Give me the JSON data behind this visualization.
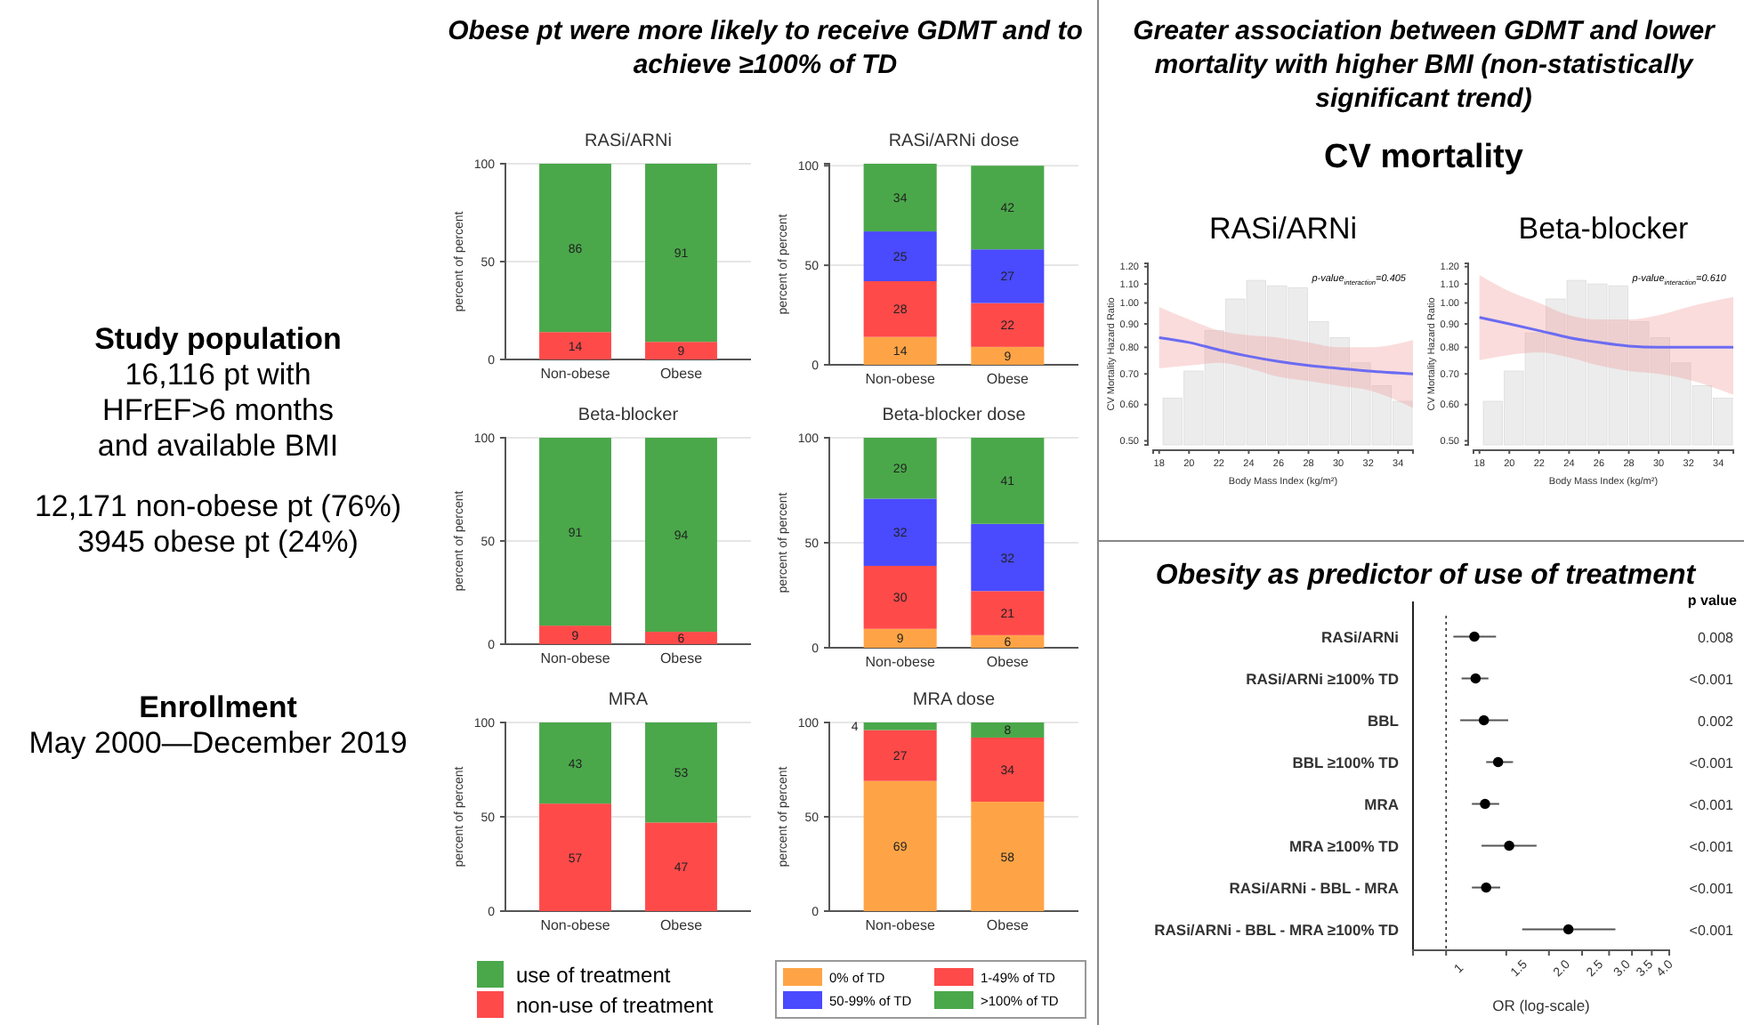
{
  "chart_data": [
    {
      "type": "other",
      "title": "Study population",
      "annotations": [
        "16,116 pt with",
        "HFrEF>6 months",
        "and available BMI",
        "12,171 non-obese pt (76%)",
        "3945 obese pt (24%)"
      ]
    },
    {
      "type": "other",
      "title": "Enrollment",
      "annotations": [
        "May 2000—December 2019"
      ]
    },
    {
      "type": "other",
      "title": "Obese pt were more likely to receive GDMT and to achieve ≥100% of TD"
    },
    {
      "type": "bar",
      "title": "RASi/ARNi",
      "categories": [
        "Non-obese",
        "Obese"
      ],
      "ylabel": "percent of percent",
      "ylim": [
        0,
        100
      ],
      "yticks": [
        0,
        50,
        100
      ],
      "grid": "y",
      "stacked": true,
      "data_labels": true,
      "series": [
        {
          "color": "#ff4a4a",
          "values": [
            14,
            9
          ]
        },
        {
          "color": "#4aa84a",
          "values": [
            86,
            91
          ]
        }
      ]
    },
    {
      "type": "bar",
      "title": "RASi/ARNi dose",
      "categories": [
        "Non-obese",
        "Obese"
      ],
      "ylabel": "percent of percent",
      "ylim": [
        0,
        101
      ],
      "yticks": [
        0,
        50,
        100
      ],
      "grid": "y",
      "stacked": true,
      "data_labels": true,
      "series": [
        {
          "color": "#ffa446",
          "values": [
            14,
            9
          ]
        },
        {
          "color": "#ff4a4a",
          "values": [
            28,
            22
          ]
        },
        {
          "color": "#4a4aff",
          "values": [
            25,
            27
          ]
        },
        {
          "color": "#4aa84a",
          "values": [
            34,
            42
          ]
        }
      ]
    },
    {
      "type": "bar",
      "title": "Beta-blocker",
      "categories": [
        "Non-obese",
        "Obese"
      ],
      "ylabel": "percent of percent",
      "ylim": [
        0,
        100
      ],
      "yticks": [
        0,
        50,
        100
      ],
      "grid": "y",
      "stacked": true,
      "data_labels": true,
      "series": [
        {
          "color": "#ff4a4a",
          "values": [
            9,
            6
          ]
        },
        {
          "color": "#4aa84a",
          "values": [
            91,
            94
          ]
        }
      ]
    },
    {
      "type": "bar",
      "title": "Beta-blocker dose",
      "categories": [
        "Non-obese",
        "Obese"
      ],
      "ylabel": "percent of percent",
      "ylim": [
        0,
        100
      ],
      "yticks": [
        0,
        50,
        100
      ],
      "grid": "y",
      "stacked": true,
      "data_labels": true,
      "series": [
        {
          "color": "#ffa446",
          "values": [
            9,
            6
          ]
        },
        {
          "color": "#ff4a4a",
          "values": [
            30,
            21
          ]
        },
        {
          "color": "#4a4aff",
          "values": [
            32,
            32
          ]
        },
        {
          "color": "#4aa84a",
          "values": [
            29,
            41
          ]
        }
      ]
    },
    {
      "type": "bar",
      "title": "MRA",
      "categories": [
        "Non-obese",
        "Obese"
      ],
      "ylabel": "percent of percent",
      "ylim": [
        0,
        100
      ],
      "yticks": [
        0,
        50,
        100
      ],
      "grid": "y",
      "stacked": true,
      "data_labels": true,
      "legend": "bottom",
      "series": [
        {
          "name": "non-use of treatment",
          "color": "#ff4a4a",
          "values": [
            57,
            47
          ]
        },
        {
          "name": "use of treatment",
          "color": "#4aa84a",
          "values": [
            43,
            53
          ]
        }
      ]
    },
    {
      "type": "bar",
      "title": "MRA dose",
      "categories": [
        "Non-obese",
        "Obese"
      ],
      "ylabel": "percent of percent",
      "ylim": [
        0,
        100
      ],
      "yticks": [
        0,
        50,
        100
      ],
      "grid": "y",
      "stacked": true,
      "data_labels": true,
      "legend": "bottom",
      "series": [
        {
          "name": "0% of TD",
          "color": "#ffa446",
          "values": [
            69,
            58
          ]
        },
        {
          "name": "1-49% of TD",
          "color": "#ff4a4a",
          "values": [
            27,
            34
          ]
        },
        {
          "name": "50-99% of TD",
          "color": "#4a4aff",
          "values": [
            0,
            0
          ],
          "value_labels": [
            null,
            null
          ]
        },
        {
          "name": ">100% of TD",
          "color": "#4aa84a",
          "values": [
            4,
            8
          ]
        }
      ]
    },
    {
      "type": "other",
      "title": "Greater association between GDMT and lower mortality with higher BMI (non-statistically significant trend)",
      "subtitle": "CV mortality"
    },
    {
      "type": "line",
      "title": "RASi/ARNi",
      "xlabel": "Body Mass Index (kg/m²)",
      "ylabel": "CV Mortality Hazard Ratio",
      "log": "y",
      "xlim": [
        17.6,
        35
      ],
      "xticks": [
        18,
        20,
        22,
        24,
        26,
        28,
        30,
        32,
        34
      ],
      "ylim": [
        0.49,
        1.22
      ],
      "yticks": [
        {
          "value": 0.5,
          "label": "0.50"
        },
        {
          "value": 0.6,
          "label": "0.60"
        },
        {
          "value": 0.7,
          "label": "0.70"
        },
        {
          "value": 0.8,
          "label": "0.80"
        },
        {
          "value": 0.9,
          "label": "0.90"
        },
        {
          "value": 1,
          "label": "1.00"
        },
        {
          "value": 1.1,
          "label": "1.10"
        },
        {
          "value": 1.2,
          "label": "1.20"
        }
      ],
      "annotations": [
        "p-value$_{interaction}$=0.405"
      ],
      "series": [
        {
          "type": "histogram",
          "color": "#ececec",
          "bins": [
            18.2,
            19.6,
            21,
            22.4,
            23.8,
            25.2,
            26.6,
            28,
            29.4,
            30.8,
            32.2,
            33.6,
            35
          ],
          "values": [
            0.62,
            0.71,
            0.87,
            1.02,
            1.12,
            1.09,
            1.08,
            0.91,
            0.84,
            0.74,
            0.66,
            0.61
          ]
        },
        {
          "type": "line",
          "color": "#6b6bf2",
          "x": [
            18,
            20,
            22,
            24,
            26,
            28,
            30,
            32,
            35
          ],
          "values": [
            0.84,
            0.82,
            0.79,
            0.765,
            0.745,
            0.73,
            0.72,
            0.71,
            0.7
          ],
          "lower": [
            0.72,
            0.73,
            0.74,
            0.72,
            0.69,
            0.675,
            0.66,
            0.645,
            0.59
          ],
          "upper": [
            0.98,
            0.92,
            0.87,
            0.85,
            0.84,
            0.82,
            0.8,
            0.8,
            0.83
          ]
        }
      ]
    },
    {
      "type": "line",
      "title": "Beta-blocker",
      "xlabel": "Body Mass Index (kg/m²)",
      "ylabel": "CV Mortality Hazard Ratio",
      "log": "y",
      "xlim": [
        17.6,
        35
      ],
      "xticks": [
        18,
        20,
        22,
        24,
        26,
        28,
        30,
        32,
        34
      ],
      "ylim": [
        0.49,
        1.22
      ],
      "yticks": [
        {
          "value": 0.5,
          "label": "0.50"
        },
        {
          "value": 0.6,
          "label": "0.60"
        },
        {
          "value": 0.7,
          "label": "0.70"
        },
        {
          "value": 0.8,
          "label": "0.80"
        },
        {
          "value": 0.9,
          "label": "0.90"
        },
        {
          "value": 1,
          "label": "1.00"
        },
        {
          "value": 1.1,
          "label": "1.10"
        },
        {
          "value": 1.2,
          "label": "1.20"
        }
      ],
      "annotations": [
        "p-value$_{interaction}$=0.610"
      ],
      "series": [
        {
          "type": "histogram",
          "color": "#ececec",
          "bins": [
            18.2,
            19.6,
            21,
            22.4,
            23.8,
            25.2,
            26.6,
            28,
            29.4,
            30.8,
            32.2,
            33.6,
            35
          ],
          "values": [
            0.61,
            0.71,
            0.86,
            1.02,
            1.12,
            1.1,
            1.09,
            0.91,
            0.84,
            0.74,
            0.66,
            0.62
          ]
        },
        {
          "type": "line",
          "color": "#6b6bf2",
          "x": [
            18,
            20,
            22,
            24,
            26,
            28,
            30,
            32,
            35
          ],
          "values": [
            0.93,
            0.9,
            0.87,
            0.84,
            0.82,
            0.805,
            0.8,
            0.8,
            0.8
          ],
          "lower": [
            0.75,
            0.77,
            0.78,
            0.76,
            0.73,
            0.71,
            0.7,
            0.68,
            0.63
          ],
          "upper": [
            1.15,
            1.06,
            1.0,
            0.94,
            0.92,
            0.92,
            0.94,
            0.98,
            1.03
          ]
        }
      ]
    },
    {
      "type": "scatter",
      "orientation": "horizontal",
      "title": "Obesity as predictor of use of treatment",
      "categories": [
        "RASi/ARNi",
        "RASi/ARNi ≥100% TD",
        "BBL",
        "BBL ≥100% TD",
        "MRA",
        "MRA ≥100% TD",
        "RASi/ARNi - BBL - MRA",
        "RASi/ARNi - BBL - MRA ≥100% TD"
      ],
      "y2_categories": [
        "0.008",
        "<0.001",
        "0.002",
        "<0.001",
        "<0.001",
        "<0.001",
        "<0.001",
        "<0.001"
      ],
      "annotations": [
        "p value"
      ],
      "color": "#000000",
      "marker": "circle",
      "values": [
        1.21,
        1.22,
        1.29,
        1.42,
        1.3,
        1.53,
        1.31,
        2.28
      ],
      "errors": [
        [
          1.05,
          1.4
        ],
        [
          1.11,
          1.33
        ],
        [
          1.1,
          1.52
        ],
        [
          1.31,
          1.57
        ],
        [
          1.19,
          1.43
        ],
        [
          1.27,
          1.84
        ],
        [
          1.19,
          1.44
        ],
        [
          1.67,
          3.13
        ]
      ],
      "log": "x",
      "xlim": [
        0.8,
        4.5
      ],
      "xticks": [
        1,
        {
          "value": 1.5,
          "label": "1.5"
        },
        {
          "value": 2,
          "label": "2.0"
        },
        {
          "value": 2.5,
          "label": "2.5"
        },
        {
          "value": 3,
          "label": "3.0"
        },
        {
          "value": 3.5,
          "label": "3.5"
        },
        {
          "value": 4,
          "label": "4.0"
        }
      ],
      "xlabel": "OR (log-scale)",
      "ref_lines": [
        {
          "axis": "x",
          "value": 1,
          "line_style": "dotted"
        }
      ]
    }
  ]
}
